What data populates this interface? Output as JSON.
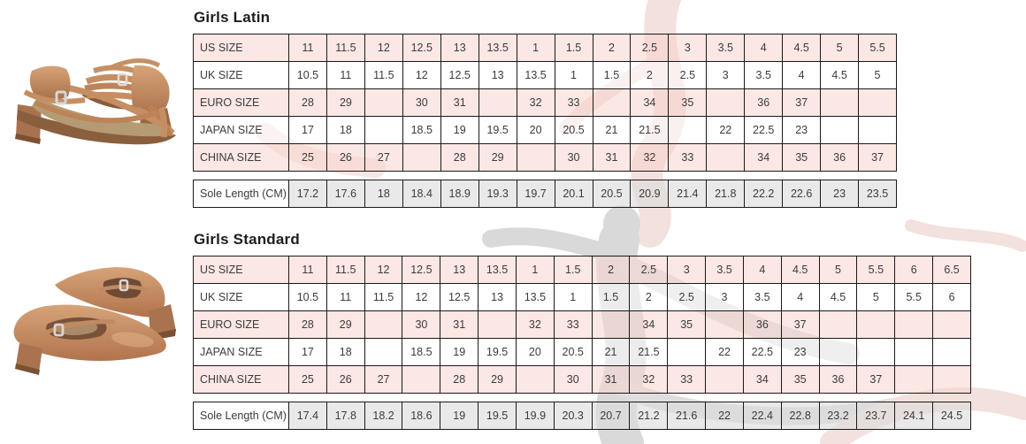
{
  "colors": {
    "row_pink": "#fbe9e6",
    "row_white": "#ffffff",
    "sole_gray": "#e9e9e9",
    "table_border": "#1a1a1a",
    "cell_text": "#3c3c3c",
    "title_text": "#1e1e1e",
    "shoe_tan": "#c58e63",
    "watermark_pink": "#f3e1de",
    "watermark_gray": "#d9d9d9"
  },
  "sections": [
    {
      "title": "Girls Latin",
      "photo_alt": "Pair of tan satin strappy Latin dance sandals with low block heels and silver buckles",
      "size_table": {
        "rows": [
          {
            "label": "US SIZE",
            "tone": "pink",
            "values": [
              "11",
              "11.5",
              "12",
              "12.5",
              "13",
              "13.5",
              "1",
              "1.5",
              "2",
              "2.5",
              "3",
              "3.5",
              "4",
              "4.5",
              "5",
              "5.5"
            ]
          },
          {
            "label": "UK SIZE",
            "tone": "white",
            "values": [
              "10.5",
              "11",
              "11.5",
              "12",
              "12.5",
              "13",
              "13.5",
              "1",
              "1.5",
              "2",
              "2.5",
              "3",
              "3.5",
              "4",
              "4.5",
              "5"
            ]
          },
          {
            "label": "EURO SIZE",
            "tone": "pink",
            "values": [
              "28",
              "29",
              "",
              "30",
              "31",
              "",
              "32",
              "33",
              "",
              "34",
              "35",
              "",
              "36",
              "37",
              "",
              ""
            ]
          },
          {
            "label": "JAPAN SIZE",
            "tone": "white",
            "values": [
              "17",
              "18",
              "",
              "18.5",
              "19",
              "19.5",
              "20",
              "20.5",
              "21",
              "21.5",
              "",
              "22",
              "22.5",
              "23",
              "",
              ""
            ]
          },
          {
            "label": "CHINA SIZE",
            "tone": "pink",
            "values": [
              "25",
              "26",
              "27",
              "",
              "28",
              "29",
              "",
              "30",
              "31",
              "32",
              "33",
              "",
              "34",
              "35",
              "36",
              "37"
            ]
          }
        ]
      },
      "sole_table": {
        "rows": [
          {
            "label": "Sole Length (CM)",
            "tone": "sole",
            "values": [
              "17.2",
              "17.6",
              "18",
              "18.4",
              "18.9",
              "19.3",
              "19.7",
              "20.1",
              "20.5",
              "20.9",
              "21.4",
              "21.8",
              "22.2",
              "22.6",
              "23",
              "23.5"
            ]
          }
        ]
      }
    },
    {
      "title": "Girls Standard",
      "photo_alt": "Pair of tan satin closed-toe standard ballroom shoes with ankle straps and low block heels",
      "size_table": {
        "rows": [
          {
            "label": "US SIZE",
            "tone": "pink",
            "values": [
              "11",
              "11.5",
              "12",
              "12.5",
              "13",
              "13.5",
              "1",
              "1.5",
              "2",
              "2.5",
              "3",
              "3.5",
              "4",
              "4.5",
              "5",
              "5.5",
              "6",
              "6.5"
            ]
          },
          {
            "label": "UK SIZE",
            "tone": "white",
            "values": [
              "10.5",
              "11",
              "11.5",
              "12",
              "12.5",
              "13",
              "13.5",
              "1",
              "1.5",
              "2",
              "2.5",
              "3",
              "3.5",
              "4",
              "4.5",
              "5",
              "5.5",
              "6"
            ]
          },
          {
            "label": "EURO SIZE",
            "tone": "pink",
            "values": [
              "28",
              "29",
              "",
              "30",
              "31",
              "",
              "32",
              "33",
              "",
              "34",
              "35",
              "",
              "36",
              "37",
              "",
              "",
              "",
              ""
            ]
          },
          {
            "label": "JAPAN SIZE",
            "tone": "white",
            "values": [
              "17",
              "18",
              "",
              "18.5",
              "19",
              "19.5",
              "20",
              "20.5",
              "21",
              "21.5",
              "",
              "22",
              "22.5",
              "23",
              "",
              "",
              "",
              ""
            ]
          },
          {
            "label": "CHINA SIZE",
            "tone": "pink",
            "values": [
              "25",
              "26",
              "27",
              "",
              "28",
              "29",
              "",
              "30",
              "31",
              "32",
              "33",
              "",
              "34",
              "35",
              "36",
              "37",
              "",
              ""
            ]
          }
        ]
      },
      "sole_table": {
        "rows": [
          {
            "label": "Sole Length (CM)",
            "tone": "sole",
            "values": [
              "17.4",
              "17.8",
              "18.2",
              "18.6",
              "19",
              "19.5",
              "19.9",
              "20.3",
              "20.7",
              "21.2",
              "21.6",
              "22",
              "22.4",
              "22.8",
              "23.2",
              "23.7",
              "24.1",
              "24.5"
            ]
          }
        ]
      }
    }
  ]
}
